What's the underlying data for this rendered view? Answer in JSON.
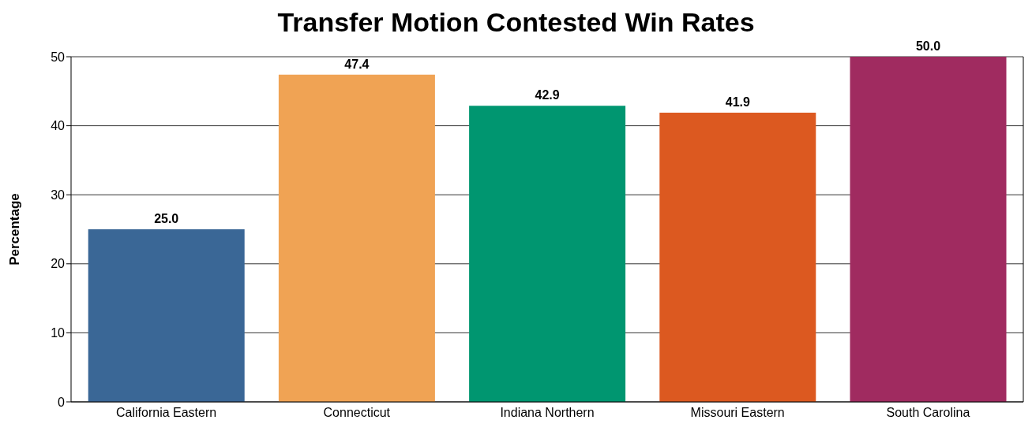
{
  "chart_data": {
    "type": "bar",
    "title": "Transfer Motion Contested Win Rates",
    "ylabel": "Percentage",
    "categories": [
      "California Eastern",
      "Connecticut",
      "Indiana Northern",
      "Missouri Eastern",
      "South Carolina"
    ],
    "values": [
      25.0,
      47.4,
      42.9,
      41.9,
      50.0
    ],
    "value_labels": [
      "25.0",
      "47.4",
      "42.9",
      "41.9",
      "50.0"
    ],
    "colors": [
      "#3a6796",
      "#f0a354",
      "#009670",
      "#dc5920",
      "#a02b60"
    ],
    "ylim": [
      0,
      50
    ],
    "yticks": [
      0,
      10,
      20,
      30,
      40,
      50
    ],
    "grid": "y"
  }
}
